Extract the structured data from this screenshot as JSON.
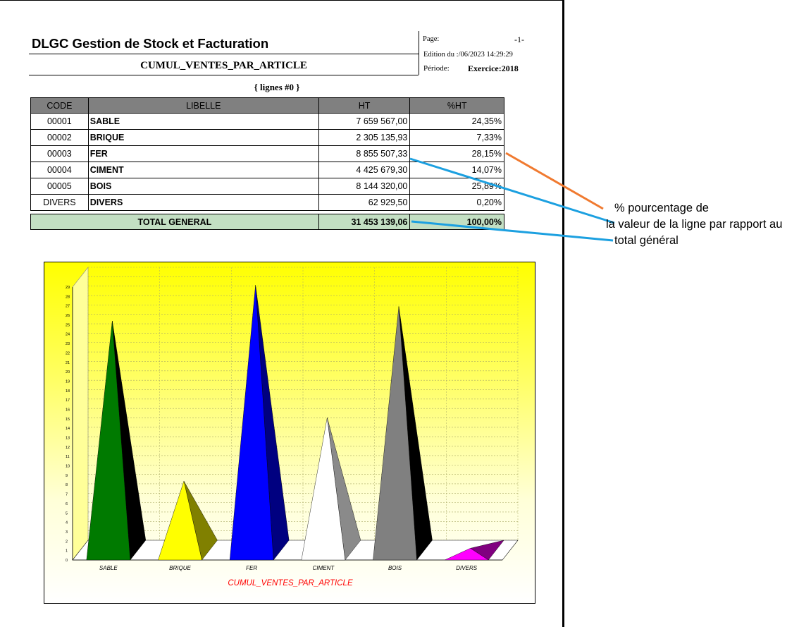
{
  "header": {
    "company": "DLGC Gestion de Stock et Facturation",
    "report_title": "CUMUL_VENTES_PAR_ARTICLE",
    "page_label": "Page:",
    "page_number": "-1-",
    "edition": "Edition du :/06/2023 14:29:29",
    "periode_label": "Période:",
    "periode_value": "Exercice:2018",
    "lines_label": "{ lignes #0 }"
  },
  "table": {
    "columns": [
      "CODE",
      "LIBELLE",
      "HT",
      "%HT"
    ],
    "rows": [
      {
        "code": "00001",
        "libelle": "SABLE",
        "ht": "7 659 567,00",
        "pct": "24,35%"
      },
      {
        "code": "00002",
        "libelle": "BRIQUE",
        "ht": "2 305 135,93",
        "pct": "7,33%"
      },
      {
        "code": "00003",
        "libelle": "FER",
        "ht": "8 855 507,33",
        "pct": "28,15%"
      },
      {
        "code": "00004",
        "libelle": "CIMENT",
        "ht": "4 425 679,30",
        "pct": "14,07%"
      },
      {
        "code": "00005",
        "libelle": "BOIS",
        "ht": "8 144 320,00",
        "pct": "25,89%"
      },
      {
        "code": "DIVERS",
        "libelle": "DIVERS",
        "ht": "62 929,50",
        "pct": "0,20%"
      }
    ],
    "total": {
      "label": "TOTAL GENERAL",
      "ht": "31 453 139,06",
      "pct": "100,00%"
    }
  },
  "annotation": {
    "line1": "%  pourcentage de",
    "line2": "la valeur de la ligne par rapport au",
    "line3": "total général",
    "colors": {
      "orange": "#f07a30",
      "blue": "#1ca0e0"
    }
  },
  "chart_data": {
    "type": "bar",
    "categories": [
      "SABLE",
      "BRIQUE",
      "FER",
      "CIMENT",
      "BOIS",
      "DIVERS"
    ],
    "values": [
      24.35,
      7.33,
      28.15,
      14.07,
      25.89,
      0.2
    ],
    "colors": [
      "#007a00",
      "#ffff00",
      "#0000ff",
      "#ffffff",
      "#808080",
      "#ff00ff"
    ],
    "shade_colors": [
      "#000000",
      "#808000",
      "#000080",
      "#8a8a8a",
      "#000000",
      "#800080"
    ],
    "title": "CUMUL_VENTES_PAR_ARTICLE",
    "xlabel": "",
    "ylabel": "",
    "ylim": [
      0,
      29
    ],
    "yticks": [
      0,
      1,
      2,
      3,
      4,
      5,
      6,
      7,
      8,
      9,
      10,
      11,
      12,
      13,
      14,
      15,
      16,
      17,
      18,
      19,
      20,
      21,
      22,
      23,
      24,
      25,
      26,
      27,
      28,
      29
    ],
    "grid": true,
    "mark_shape": "pyramid"
  }
}
